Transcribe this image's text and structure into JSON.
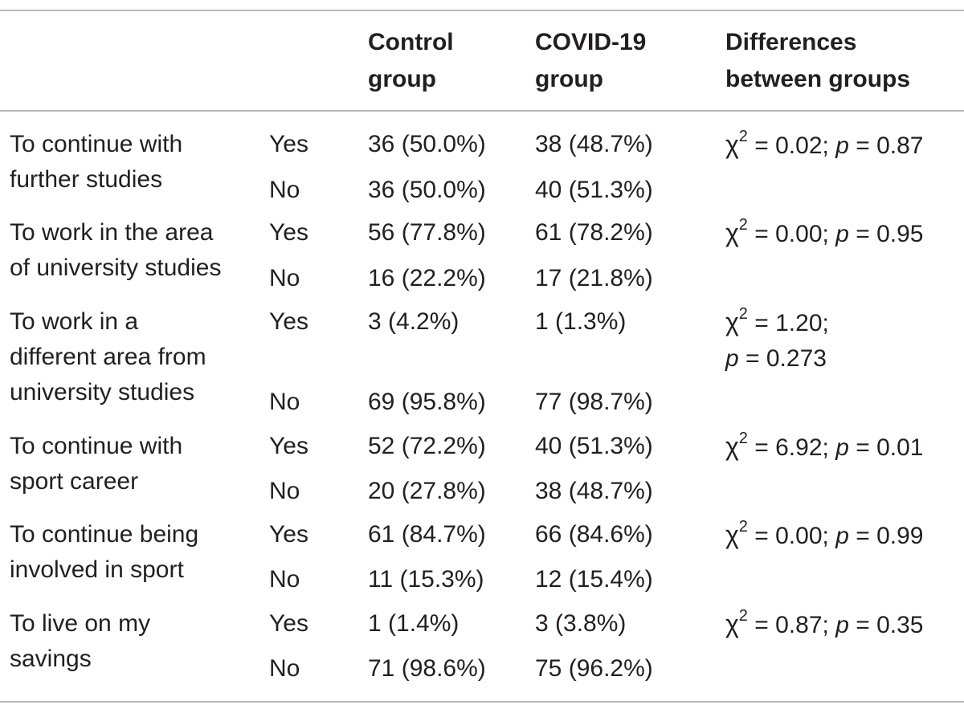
{
  "header": {
    "control": [
      "Control",
      "group"
    ],
    "covid": [
      "COVID-19",
      "group"
    ],
    "diff": [
      "Differences",
      "between groups"
    ]
  },
  "rows": [
    {
      "label": [
        "To continue with",
        "further studies"
      ],
      "yes": {
        "resp": "Yes",
        "control": "36 (50.0%)",
        "covid": "38 (48.7%)"
      },
      "no": {
        "resp": "No",
        "control": "36 (50.0%)",
        "covid": "40 (51.3%)"
      },
      "stat": {
        "symbol": "χ",
        "exp": "2",
        "chi": " = 0.02;",
        "p_label": "p",
        "p": " = 0.87"
      }
    },
    {
      "label": [
        "To work in the area",
        "of university studies"
      ],
      "yes": {
        "resp": "Yes",
        "control": "56 (77.8%)",
        "covid": "61 (78.2%)"
      },
      "no": {
        "resp": "No",
        "control": "16 (22.2%)",
        "covid": "17 (21.8%)"
      },
      "stat": {
        "symbol": "χ",
        "exp": "2",
        "chi": " = 0.00;",
        "p_label": "p",
        "p": " = 0.95"
      }
    },
    {
      "label": [
        "To work in a",
        "different area from",
        "university studies"
      ],
      "yes": {
        "resp": "Yes",
        "control": "3 (4.2%)",
        "covid": "1 (1.3%)"
      },
      "no": {
        "resp": "No",
        "control": "69 (95.8%)",
        "covid": "77 (98.7%)"
      },
      "stat": {
        "symbol": "χ",
        "exp": "2",
        "chi": " = 1.20;",
        "p_label": "p",
        "p": " = 0.273"
      }
    },
    {
      "label": [
        "To continue with",
        "sport career"
      ],
      "yes": {
        "resp": "Yes",
        "control": "52 (72.2%)",
        "covid": "40 (51.3%)"
      },
      "no": {
        "resp": "No",
        "control": "20 (27.8%)",
        "covid": "38 (48.7%)"
      },
      "stat": {
        "symbol": "χ",
        "exp": "2",
        "chi": " = 6.92;",
        "p_label": "p",
        "p": " = 0.01"
      }
    },
    {
      "label": [
        "To continue being",
        "involved in sport"
      ],
      "yes": {
        "resp": "Yes",
        "control": "61 (84.7%)",
        "covid": "66 (84.6%)"
      },
      "no": {
        "resp": "No",
        "control": "11 (15.3%)",
        "covid": "12 (15.4%)"
      },
      "stat": {
        "symbol": "χ",
        "exp": "2",
        "chi": " = 0.00;",
        "p_label": "p",
        "p": " = 0.99"
      }
    },
    {
      "label": [
        "To live on my",
        "savings"
      ],
      "yes": {
        "resp": "Yes",
        "control": "1 (1.4%)",
        "covid": "3 (3.8%)"
      },
      "no": {
        "resp": "No",
        "control": "71 (98.6%)",
        "covid": "75 (96.2%)"
      },
      "stat": {
        "symbol": "χ",
        "exp": "2",
        "chi": " = 0.87;",
        "p_label": "p",
        "p": " = 0.35"
      }
    }
  ]
}
